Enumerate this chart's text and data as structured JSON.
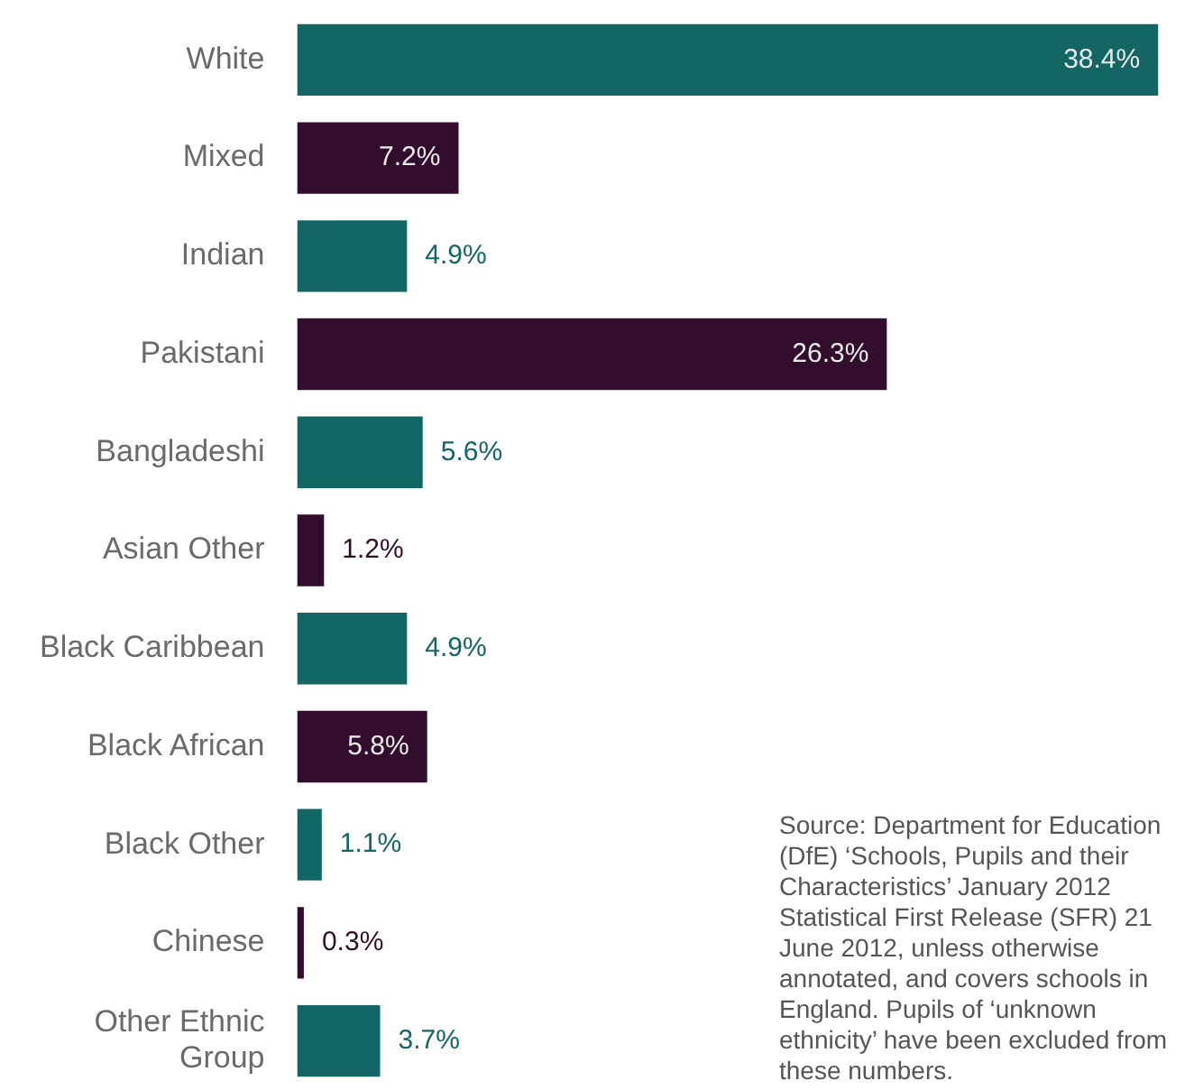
{
  "chart_data": {
    "type": "bar",
    "orientation": "horizontal",
    "categories": [
      "White",
      "Mixed",
      "Indian",
      "Pakistani",
      "Bangladeshi",
      "Asian Other",
      "Black Caribbean",
      "Black African",
      "Black Other",
      "Chinese",
      "Other Ethnic Group"
    ],
    "values": [
      38.4,
      7.2,
      4.9,
      26.3,
      5.6,
      1.2,
      4.9,
      5.8,
      1.1,
      0.3,
      3.7
    ],
    "colors": [
      "#136664",
      "#330d2e",
      "#136664",
      "#330d2e",
      "#136664",
      "#330d2e",
      "#136664",
      "#330d2e",
      "#136664",
      "#330d2e",
      "#136664"
    ],
    "value_labels": [
      "38.4%",
      "7.2%",
      "4.9%",
      "26.3%",
      "5.6%",
      "1.2%",
      "4.9%",
      "5.8%",
      "1.1%",
      "0.3%",
      "3.7%"
    ],
    "annotations": [
      "Source: Department for Education (DfE) ‘Schools, Pupils and their Characteristics’ January 2012 Statistical First Release (SFR) 21 June 2012, unless otherwise annotated, and covers schools in England. Pupils of ‘unknown ethnicity’ have been excluded from these numbers."
    ]
  }
}
